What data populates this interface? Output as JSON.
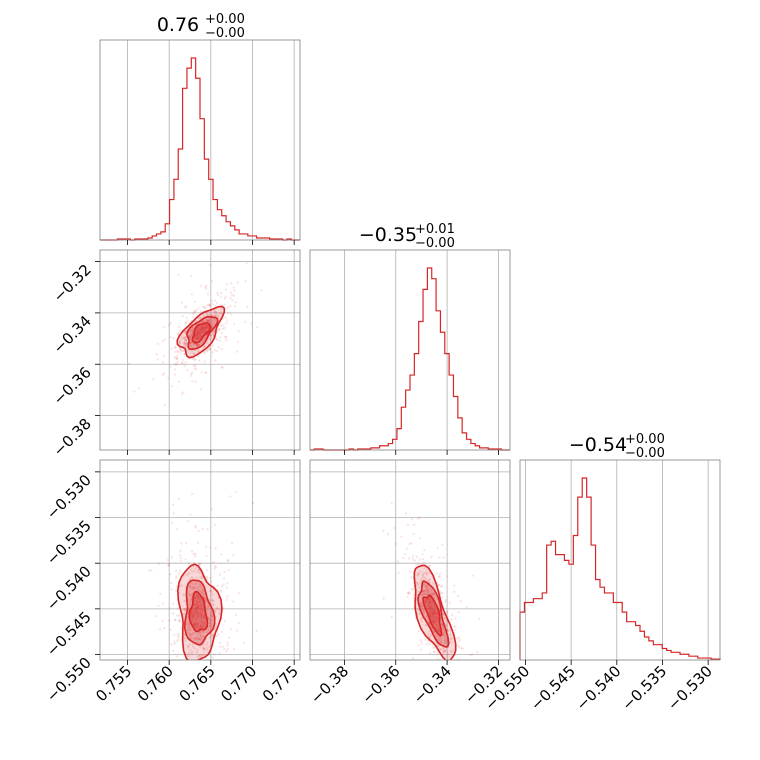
{
  "chart_data": {
    "type": "corner",
    "color": "#d62728",
    "grid": true,
    "parameters": [
      {
        "title_value": "0.76",
        "err_plus": "+0.00",
        "err_minus": "−0.00",
        "range": [
          0.7517,
          0.7757
        ],
        "ticks": [
          {
            "v": 0.755,
            "label": "0.755"
          },
          {
            "v": 0.76,
            "label": "0.760"
          },
          {
            "v": 0.765,
            "label": "0.765"
          },
          {
            "v": 0.77,
            "label": "0.770"
          },
          {
            "v": 0.775,
            "label": "0.775"
          }
        ],
        "hist": [
          0,
          0,
          0,
          0,
          0.5,
          0.5,
          0.5,
          0,
          0.5,
          0.5,
          0.5,
          1,
          2,
          3,
          4,
          8,
          20,
          30,
          45,
          75,
          85,
          90,
          80,
          60,
          40,
          30,
          20,
          15,
          12,
          9,
          7,
          5,
          3,
          3,
          2,
          2,
          1,
          1,
          1,
          0.5,
          0.5,
          0.5,
          0,
          0.5,
          0,
          0
        ]
      },
      {
        "title_value": "−0.35",
        "err_plus": "+0.01",
        "err_minus": "−0.00",
        "range": [
          -0.3934,
          -0.3155
        ],
        "ticks": [
          {
            "v": -0.38,
            "label": "−0.38"
          },
          {
            "v": -0.36,
            "label": "−0.36"
          },
          {
            "v": -0.34,
            "label": "−0.34"
          },
          {
            "v": -0.32,
            "label": "−0.32"
          }
        ],
        "hist": [
          0,
          0.5,
          0.5,
          0,
          0,
          0,
          0,
          0,
          0,
          0.5,
          0,
          0.5,
          0.5,
          0.5,
          1,
          1,
          2,
          2,
          3,
          5,
          10,
          20,
          28,
          35,
          45,
          60,
          75,
          85,
          80,
          65,
          55,
          45,
          35,
          25,
          15,
          8,
          5,
          3,
          2,
          1,
          1,
          0.5,
          0.5,
          0.5,
          0,
          0
        ]
      },
      {
        "title_value": "−0.54",
        "err_plus": "+0.00",
        "err_minus": "−0.00",
        "range": [
          -0.5506,
          -0.5287
        ],
        "ticks": [
          {
            "v": -0.55,
            "label": "−0.550"
          },
          {
            "v": -0.545,
            "label": "−0.545"
          },
          {
            "v": -0.54,
            "label": "−0.540"
          },
          {
            "v": -0.535,
            "label": "−0.535"
          },
          {
            "v": -0.53,
            "label": "−0.530"
          }
        ],
        "hist": [
          25,
          30,
          30,
          32,
          32,
          35,
          60,
          62,
          55,
          55,
          52,
          50,
          65,
          85,
          95,
          85,
          60,
          42,
          38,
          35,
          35,
          30,
          30,
          25,
          20,
          20,
          18,
          15,
          12,
          10,
          8,
          8,
          6,
          5,
          4,
          4,
          3,
          3,
          2,
          2,
          1,
          1,
          1,
          0.5,
          0.5
        ]
      }
    ],
    "panels": [
      {
        "row": 1,
        "col": 0,
        "cx": 0.7638,
        "cy": -0.3475,
        "sx": 0.00115,
        "sy": 0.00424,
        "rho": 0.6,
        "slope": 0.0025,
        "sxmin": -0.0015
      },
      {
        "row": 2,
        "col": 0,
        "cx": 0.7635,
        "cy": -0.5455,
        "sx": 0.0011,
        "sy": 0.00235,
        "rho": -0.1,
        "slope": 0.0009,
        "sxmin": -0.001
      },
      {
        "row": 2,
        "col": 1,
        "cx": -0.3455,
        "cy": -0.5455,
        "sx": 0.0036,
        "sy": 0.00235,
        "rho": -0.7,
        "slope": 0.004,
        "sxmin": -0.0012
      }
    ]
  }
}
